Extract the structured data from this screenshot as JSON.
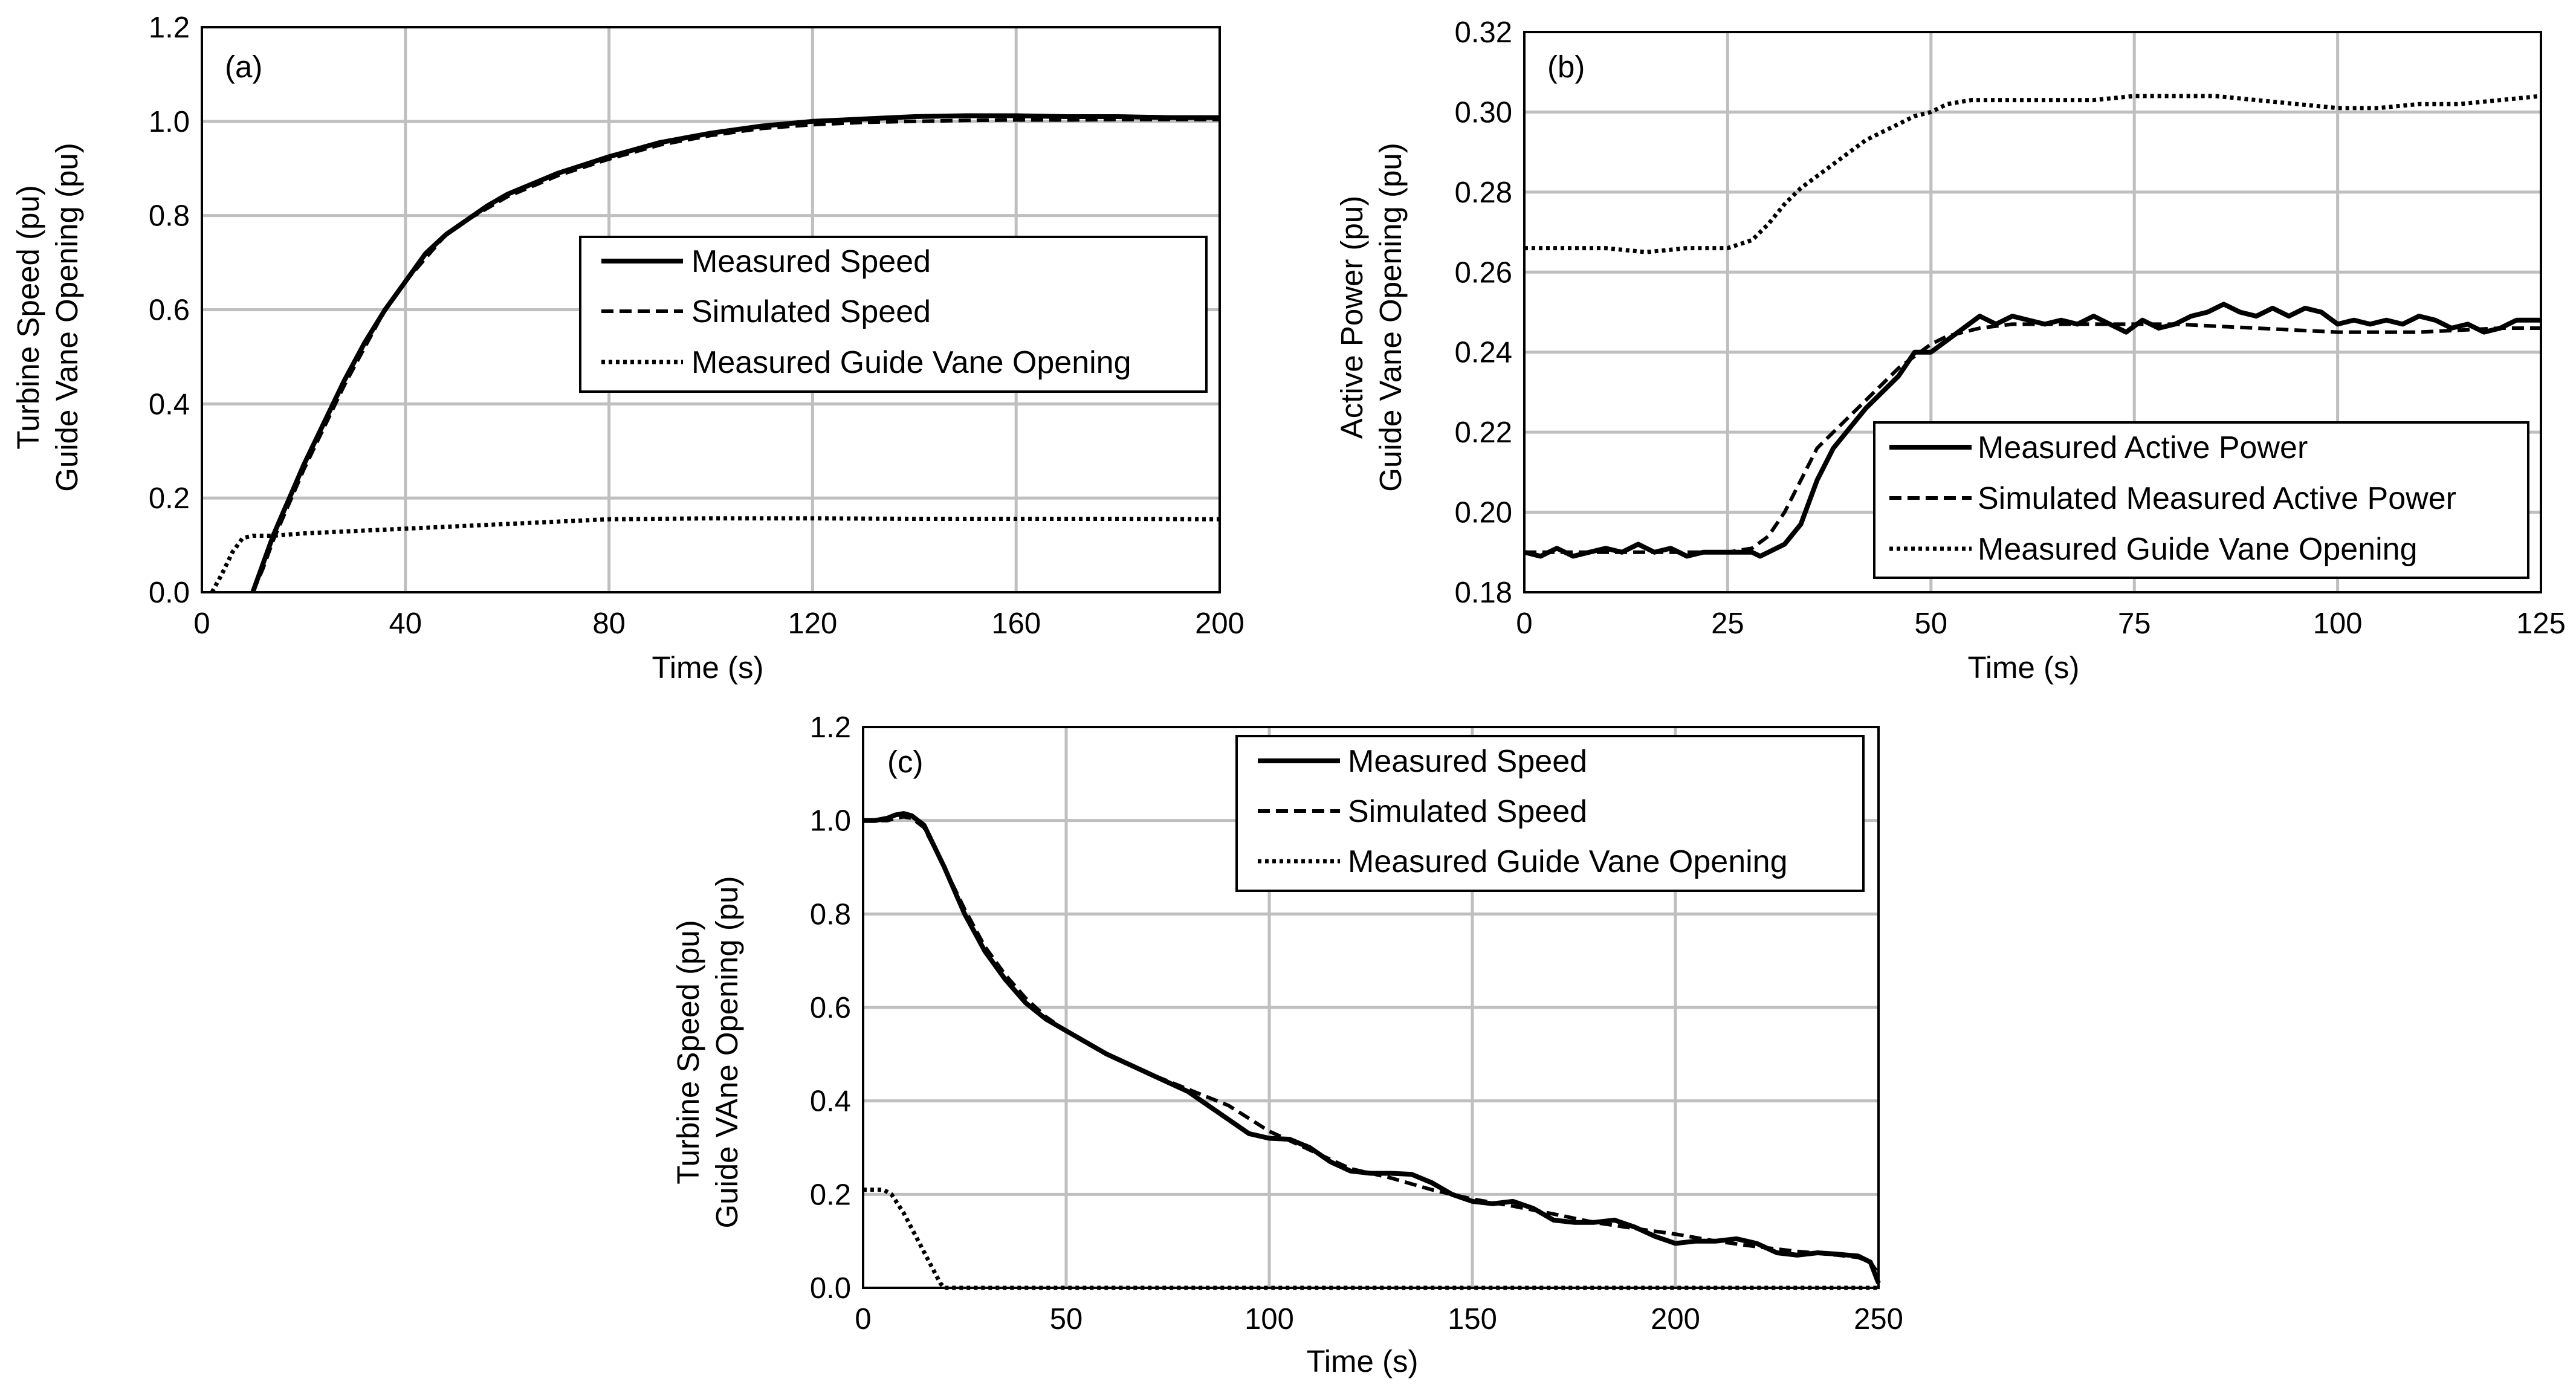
{
  "chart_data": [
    {
      "type": "line",
      "id": "a",
      "panel_label": "(a)",
      "xlabel": "Time (s)",
      "ylabel_lines": [
        "Turbine Speed (pu)",
        "Guide Vane Opening (pu)"
      ],
      "xlim": [
        0,
        200
      ],
      "ylim": [
        0,
        1.2
      ],
      "xticks": [
        0,
        40,
        80,
        120,
        160,
        200
      ],
      "xtick_labels": [
        "0",
        "40",
        "80",
        "120",
        "160",
        "200"
      ],
      "yticks": [
        0,
        0.2,
        0.4,
        0.6,
        0.8,
        1.0,
        1.2
      ],
      "ytick_labels": [
        "0.0",
        "0.2",
        "0.4",
        "0.6",
        "0.8",
        "1.0",
        "1.2"
      ],
      "grid": true,
      "legend_position": "center-right",
      "series": [
        {
          "name": "Measured Speed",
          "style": "solid",
          "x": [
            10,
            12,
            14,
            16,
            18,
            20,
            24,
            28,
            32,
            36,
            40,
            44,
            48,
            52,
            56,
            60,
            70,
            80,
            90,
            100,
            110,
            120,
            130,
            140,
            150,
            160,
            170,
            180,
            190,
            200
          ],
          "y": [
            0,
            0.06,
            0.12,
            0.17,
            0.22,
            0.27,
            0.36,
            0.45,
            0.53,
            0.6,
            0.66,
            0.72,
            0.76,
            0.79,
            0.82,
            0.845,
            0.89,
            0.925,
            0.955,
            0.975,
            0.99,
            1.0,
            1.005,
            1.01,
            1.012,
            1.012,
            1.01,
            1.01,
            1.008,
            1.008
          ]
        },
        {
          "name": "Simulated Speed",
          "style": "dashed",
          "x": [
            10,
            12,
            14,
            16,
            18,
            20,
            24,
            28,
            32,
            36,
            40,
            44,
            48,
            52,
            56,
            60,
            70,
            80,
            90,
            100,
            110,
            120,
            130,
            140,
            150,
            160,
            170,
            180,
            190,
            200
          ],
          "y": [
            0,
            0.05,
            0.11,
            0.16,
            0.21,
            0.26,
            0.35,
            0.44,
            0.52,
            0.6,
            0.66,
            0.71,
            0.76,
            0.79,
            0.815,
            0.84,
            0.885,
            0.92,
            0.95,
            0.97,
            0.985,
            0.993,
            0.998,
            1.0,
            1.002,
            1.003,
            1.003,
            1.004,
            1.004,
            1.004
          ]
        },
        {
          "name": "Measured Guide Vane Opening",
          "style": "dotted",
          "x": [
            2,
            4,
            6,
            8,
            10,
            14,
            20,
            30,
            40,
            50,
            60,
            70,
            80,
            100,
            120,
            140,
            160,
            180,
            200
          ],
          "y": [
            0,
            0.04,
            0.085,
            0.115,
            0.12,
            0.12,
            0.125,
            0.13,
            0.135,
            0.14,
            0.145,
            0.15,
            0.155,
            0.157,
            0.157,
            0.156,
            0.156,
            0.156,
            0.155
          ]
        }
      ]
    },
    {
      "type": "line",
      "id": "b",
      "panel_label": "(b)",
      "xlabel": "Time (s)",
      "ylabel_lines": [
        "Active Power  (pu)",
        "Guide Vane Opening (pu)"
      ],
      "xlim": [
        0,
        125
      ],
      "ylim": [
        0.18,
        0.32
      ],
      "xticks": [
        0,
        25,
        50,
        75,
        100,
        125
      ],
      "xtick_labels": [
        "0",
        "25",
        "50",
        "75",
        "100",
        "125"
      ],
      "yticks": [
        0.18,
        0.2,
        0.22,
        0.24,
        0.26,
        0.28,
        0.3,
        0.32
      ],
      "ytick_labels": [
        "0.18",
        "0.20",
        "0.22",
        "0.24",
        "0.26",
        "0.28",
        "0.30",
        "0.32"
      ],
      "grid": true,
      "legend_position": "bottom-right",
      "series": [
        {
          "name": "Measured Active Power",
          "style": "solid",
          "x": [
            0,
            2,
            4,
            6,
            8,
            10,
            12,
            14,
            16,
            18,
            20,
            22,
            24,
            26,
            28,
            29,
            30,
            32,
            34,
            36,
            38,
            40,
            42,
            44,
            46,
            48,
            50,
            52,
            54,
            56,
            58,
            60,
            62,
            64,
            66,
            68,
            70,
            72,
            74,
            76,
            78,
            80,
            82,
            84,
            86,
            88,
            90,
            92,
            94,
            96,
            98,
            100,
            102,
            104,
            106,
            108,
            110,
            112,
            114,
            116,
            118,
            120,
            122,
            125
          ],
          "y": [
            0.19,
            0.189,
            0.191,
            0.189,
            0.19,
            0.191,
            0.19,
            0.192,
            0.19,
            0.191,
            0.189,
            0.19,
            0.19,
            0.19,
            0.19,
            0.189,
            0.19,
            0.192,
            0.197,
            0.208,
            0.216,
            0.221,
            0.226,
            0.23,
            0.234,
            0.24,
            0.24,
            0.243,
            0.246,
            0.249,
            0.247,
            0.249,
            0.248,
            0.247,
            0.248,
            0.247,
            0.249,
            0.247,
            0.245,
            0.248,
            0.246,
            0.247,
            0.249,
            0.25,
            0.252,
            0.25,
            0.249,
            0.251,
            0.249,
            0.251,
            0.25,
            0.247,
            0.248,
            0.247,
            0.248,
            0.247,
            0.249,
            0.248,
            0.246,
            0.247,
            0.245,
            0.246,
            0.248,
            0.248
          ]
        },
        {
          "name": "Simulated Measured Active Power",
          "style": "dashed",
          "x": [
            0,
            10,
            20,
            25,
            28,
            30,
            32,
            34,
            36,
            38,
            40,
            42,
            44,
            46,
            48,
            50,
            52,
            54,
            56,
            60,
            70,
            80,
            90,
            100,
            110,
            120,
            125
          ],
          "y": [
            0.19,
            0.19,
            0.19,
            0.19,
            0.191,
            0.194,
            0.2,
            0.208,
            0.216,
            0.22,
            0.224,
            0.228,
            0.232,
            0.236,
            0.239,
            0.242,
            0.244,
            0.245,
            0.246,
            0.247,
            0.247,
            0.247,
            0.246,
            0.245,
            0.245,
            0.246,
            0.246
          ]
        },
        {
          "name": "Measured Guide Vane Opening",
          "style": "dotted",
          "x": [
            0,
            5,
            10,
            15,
            20,
            25,
            28,
            30,
            32,
            34,
            36,
            38,
            40,
            42,
            44,
            46,
            48,
            50,
            52,
            55,
            60,
            65,
            70,
            75,
            80,
            85,
            90,
            95,
            100,
            105,
            110,
            115,
            120,
            125
          ],
          "y": [
            0.266,
            0.266,
            0.266,
            0.265,
            0.266,
            0.266,
            0.268,
            0.272,
            0.277,
            0.281,
            0.284,
            0.287,
            0.29,
            0.293,
            0.295,
            0.297,
            0.299,
            0.3,
            0.302,
            0.303,
            0.303,
            0.303,
            0.303,
            0.304,
            0.304,
            0.304,
            0.303,
            0.302,
            0.301,
            0.301,
            0.302,
            0.302,
            0.303,
            0.304
          ]
        }
      ]
    },
    {
      "type": "line",
      "id": "c",
      "panel_label": "(c)",
      "xlabel": "Time (s)",
      "ylabel_lines": [
        "Turbine Speed (pu)",
        "Guide VAne Opening (pu)"
      ],
      "xlim": [
        0,
        250
      ],
      "ylim": [
        0,
        1.2
      ],
      "xticks": [
        0,
        50,
        100,
        150,
        200,
        250
      ],
      "xtick_labels": [
        "0",
        "50",
        "100",
        "150",
        "200",
        "250"
      ],
      "yticks": [
        0,
        0.2,
        0.4,
        0.6,
        0.8,
        1.0,
        1.2
      ],
      "ytick_labels": [
        "0.0",
        "0.2",
        "0.4",
        "0.6",
        "0.8",
        "1.0",
        "1.2"
      ],
      "grid": true,
      "legend_position": "top-right",
      "series": [
        {
          "name": "Measured Speed",
          "style": "solid",
          "x": [
            0,
            3,
            6,
            8,
            10,
            12,
            15,
            20,
            25,
            30,
            35,
            40,
            45,
            50,
            60,
            70,
            80,
            85,
            90,
            95,
            100,
            105,
            110,
            115,
            120,
            125,
            130,
            135,
            140,
            145,
            150,
            155,
            160,
            165,
            170,
            175,
            180,
            185,
            190,
            195,
            200,
            205,
            210,
            215,
            220,
            225,
            230,
            235,
            240,
            245,
            248,
            250
          ],
          "y": [
            1.0,
            1.0,
            1.005,
            1.012,
            1.015,
            1.01,
            0.99,
            0.9,
            0.8,
            0.72,
            0.66,
            0.61,
            0.575,
            0.55,
            0.5,
            0.46,
            0.42,
            0.39,
            0.36,
            0.33,
            0.32,
            0.318,
            0.3,
            0.27,
            0.25,
            0.245,
            0.245,
            0.243,
            0.225,
            0.2,
            0.185,
            0.18,
            0.185,
            0.17,
            0.145,
            0.14,
            0.14,
            0.145,
            0.13,
            0.11,
            0.095,
            0.1,
            0.1,
            0.105,
            0.095,
            0.075,
            0.07,
            0.075,
            0.072,
            0.068,
            0.055,
            0.01
          ]
        },
        {
          "name": "Simulated Speed",
          "style": "dashed",
          "x": [
            0,
            3,
            6,
            8,
            10,
            12,
            15,
            20,
            25,
            30,
            35,
            40,
            45,
            50,
            60,
            70,
            80,
            90,
            100,
            110,
            120,
            130,
            140,
            150,
            160,
            170,
            180,
            190,
            200,
            210,
            220,
            230,
            240,
            245,
            248,
            250
          ],
          "y": [
            1.0,
            1.0,
            1.0,
            1.005,
            1.008,
            1.005,
            0.985,
            0.9,
            0.81,
            0.73,
            0.67,
            0.62,
            0.58,
            0.55,
            0.5,
            0.46,
            0.425,
            0.39,
            0.335,
            0.295,
            0.255,
            0.235,
            0.21,
            0.19,
            0.175,
            0.158,
            0.14,
            0.127,
            0.115,
            0.1,
            0.088,
            0.078,
            0.07,
            0.065,
            0.055,
            0.03
          ]
        },
        {
          "name": "Measured Guide Vane Opening",
          "style": "dotted",
          "x": [
            0,
            5,
            7,
            10,
            13,
            16,
            19,
            20,
            30,
            60,
            100,
            150,
            200,
            250
          ],
          "y": [
            0.21,
            0.21,
            0.2,
            0.16,
            0.11,
            0.06,
            0.01,
            0,
            0,
            0,
            0,
            0,
            0,
            0
          ]
        }
      ]
    }
  ]
}
